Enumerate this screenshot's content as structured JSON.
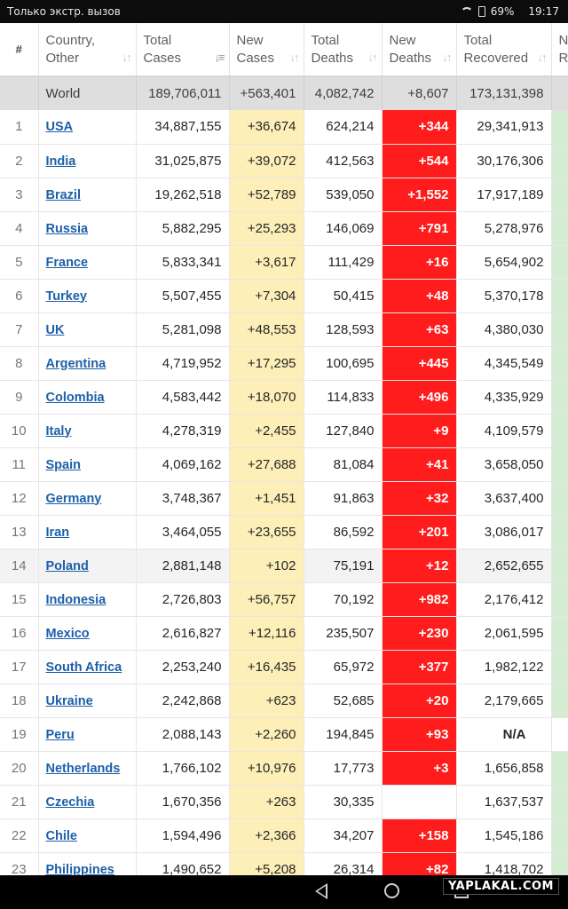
{
  "status_bar": {
    "carrier": "Только экстр. вызов",
    "battery": "69%",
    "time": "19:17"
  },
  "headers": [
    {
      "line1": "#",
      "line2": ""
    },
    {
      "line1": "Country,",
      "line2": "Other"
    },
    {
      "line1": "Total",
      "line2": "Cases"
    },
    {
      "line1": "New",
      "line2": "Cases"
    },
    {
      "line1": "Total",
      "line2": "Deaths"
    },
    {
      "line1": "New",
      "line2": "Deaths"
    },
    {
      "line1": "Total",
      "line2": "Recovered"
    },
    {
      "line1": "Ne",
      "line2": "Re"
    }
  ],
  "world": {
    "name": "World",
    "total_cases": "189,706,011",
    "new_cases": "+563,401",
    "total_deaths": "4,082,742",
    "new_deaths": "+8,607",
    "total_recovered": "173,131,398"
  },
  "rows": [
    {
      "idx": "1",
      "country": "USA",
      "total_cases": "34,887,155",
      "new_cases": "+36,674",
      "total_deaths": "624,214",
      "new_deaths": "+344",
      "total_recovered": "29,341,913"
    },
    {
      "idx": "2",
      "country": "India",
      "total_cases": "31,025,875",
      "new_cases": "+39,072",
      "total_deaths": "412,563",
      "new_deaths": "+544",
      "total_recovered": "30,176,306"
    },
    {
      "idx": "3",
      "country": "Brazil",
      "total_cases": "19,262,518",
      "new_cases": "+52,789",
      "total_deaths": "539,050",
      "new_deaths": "+1,552",
      "total_recovered": "17,917,189"
    },
    {
      "idx": "4",
      "country": "Russia",
      "total_cases": "5,882,295",
      "new_cases": "+25,293",
      "total_deaths": "146,069",
      "new_deaths": "+791",
      "total_recovered": "5,278,976"
    },
    {
      "idx": "5",
      "country": "France",
      "total_cases": "5,833,341",
      "new_cases": "+3,617",
      "total_deaths": "111,429",
      "new_deaths": "+16",
      "total_recovered": "5,654,902"
    },
    {
      "idx": "6",
      "country": "Turkey",
      "total_cases": "5,507,455",
      "new_cases": "+7,304",
      "total_deaths": "50,415",
      "new_deaths": "+48",
      "total_recovered": "5,370,178"
    },
    {
      "idx": "7",
      "country": "UK",
      "total_cases": "5,281,098",
      "new_cases": "+48,553",
      "total_deaths": "128,593",
      "new_deaths": "+63",
      "total_recovered": "4,380,030"
    },
    {
      "idx": "8",
      "country": "Argentina",
      "total_cases": "4,719,952",
      "new_cases": "+17,295",
      "total_deaths": "100,695",
      "new_deaths": "+445",
      "total_recovered": "4,345,549"
    },
    {
      "idx": "9",
      "country": "Colombia",
      "total_cases": "4,583,442",
      "new_cases": "+18,070",
      "total_deaths": "114,833",
      "new_deaths": "+496",
      "total_recovered": "4,335,929"
    },
    {
      "idx": "10",
      "country": "Italy",
      "total_cases": "4,278,319",
      "new_cases": "+2,455",
      "total_deaths": "127,840",
      "new_deaths": "+9",
      "total_recovered": "4,109,579"
    },
    {
      "idx": "11",
      "country": "Spain",
      "total_cases": "4,069,162",
      "new_cases": "+27,688",
      "total_deaths": "81,084",
      "new_deaths": "+41",
      "total_recovered": "3,658,050"
    },
    {
      "idx": "12",
      "country": "Germany",
      "total_cases": "3,748,367",
      "new_cases": "+1,451",
      "total_deaths": "91,863",
      "new_deaths": "+32",
      "total_recovered": "3,637,400"
    },
    {
      "idx": "13",
      "country": "Iran",
      "total_cases": "3,464,055",
      "new_cases": "+23,655",
      "total_deaths": "86,592",
      "new_deaths": "+201",
      "total_recovered": "3,086,017"
    },
    {
      "idx": "14",
      "country": "Poland",
      "total_cases": "2,881,148",
      "new_cases": "+102",
      "total_deaths": "75,191",
      "new_deaths": "+12",
      "total_recovered": "2,652,655"
    },
    {
      "idx": "15",
      "country": "Indonesia",
      "total_cases": "2,726,803",
      "new_cases": "+56,757",
      "total_deaths": "70,192",
      "new_deaths": "+982",
      "total_recovered": "2,176,412"
    },
    {
      "idx": "16",
      "country": "Mexico",
      "total_cases": "2,616,827",
      "new_cases": "+12,116",
      "total_deaths": "235,507",
      "new_deaths": "+230",
      "total_recovered": "2,061,595"
    },
    {
      "idx": "17",
      "country": "South Africa",
      "total_cases": "2,253,240",
      "new_cases": "+16,435",
      "total_deaths": "65,972",
      "new_deaths": "+377",
      "total_recovered": "1,982,122"
    },
    {
      "idx": "18",
      "country": "Ukraine",
      "total_cases": "2,242,868",
      "new_cases": "+623",
      "total_deaths": "52,685",
      "new_deaths": "+20",
      "total_recovered": "2,179,665"
    },
    {
      "idx": "19",
      "country": "Peru",
      "total_cases": "2,088,143",
      "new_cases": "+2,260",
      "total_deaths": "194,845",
      "new_deaths": "+93",
      "total_recovered": "N/A"
    },
    {
      "idx": "20",
      "country": "Netherlands",
      "total_cases": "1,766,102",
      "new_cases": "+10,976",
      "total_deaths": "17,773",
      "new_deaths": "+3",
      "total_recovered": "1,656,858"
    },
    {
      "idx": "21",
      "country": "Czechia",
      "total_cases": "1,670,356",
      "new_cases": "+263",
      "total_deaths": "30,335",
      "new_deaths": "",
      "total_recovered": "1,637,537"
    },
    {
      "idx": "22",
      "country": "Chile",
      "total_cases": "1,594,496",
      "new_cases": "+2,366",
      "total_deaths": "34,207",
      "new_deaths": "+158",
      "total_recovered": "1,545,186"
    },
    {
      "idx": "23",
      "country": "Philippines",
      "total_cases": "1,490,652",
      "new_cases": "+5,208",
      "total_deaths": "26,314",
      "new_deaths": "+82",
      "total_recovered": "1,418,702"
    }
  ],
  "watermark": "YAPLAKAL.COM",
  "colors": {
    "new_cases_bg": "#fdefb8",
    "new_deaths_bg": "#ff1c1c",
    "link": "#1d5fa8",
    "recovered_side_bg": "#d4ecd2"
  },
  "icons": {
    "sort": "sort-arrows-icon",
    "wifi": "wifi-icon",
    "battery": "battery-icon",
    "back": "back-triangle-icon",
    "home": "home-circle-icon",
    "recent": "recent-square-icon"
  }
}
